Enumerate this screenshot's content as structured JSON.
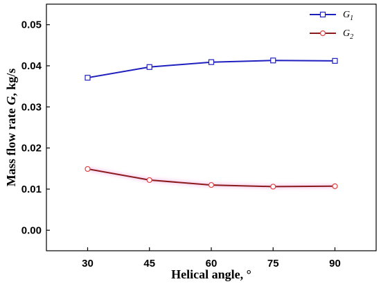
{
  "chart_data": {
    "type": "line",
    "xlabel": "Helical angle, °",
    "ylabel": "Mass flow rate G, kg/s",
    "xlim": [
      20,
      100
    ],
    "ylim": [
      -0.005,
      0.055
    ],
    "x_ticks": [
      "30",
      "45",
      "60",
      "75",
      "90"
    ],
    "y_ticks": [
      "0.00",
      "0.01",
      "0.02",
      "0.03",
      "0.04",
      "0.05"
    ],
    "x": [
      30,
      45,
      60,
      75,
      90
    ],
    "series": [
      {
        "name": "G1",
        "name_main": "G",
        "name_sub": "1",
        "values": [
          0.0371,
          0.0397,
          0.0409,
          0.0413,
          0.0412
        ],
        "color": "#1f1fbf",
        "marker": "square"
      },
      {
        "name": "G2",
        "name_main": "G",
        "name_sub": "2",
        "values": [
          0.0149,
          0.0122,
          0.011,
          0.0106,
          0.0107
        ],
        "color": "#8b1a1a",
        "marker_color": "#e04040",
        "marker": "circle"
      }
    ],
    "legend_position": "top-right",
    "grid": false
  }
}
